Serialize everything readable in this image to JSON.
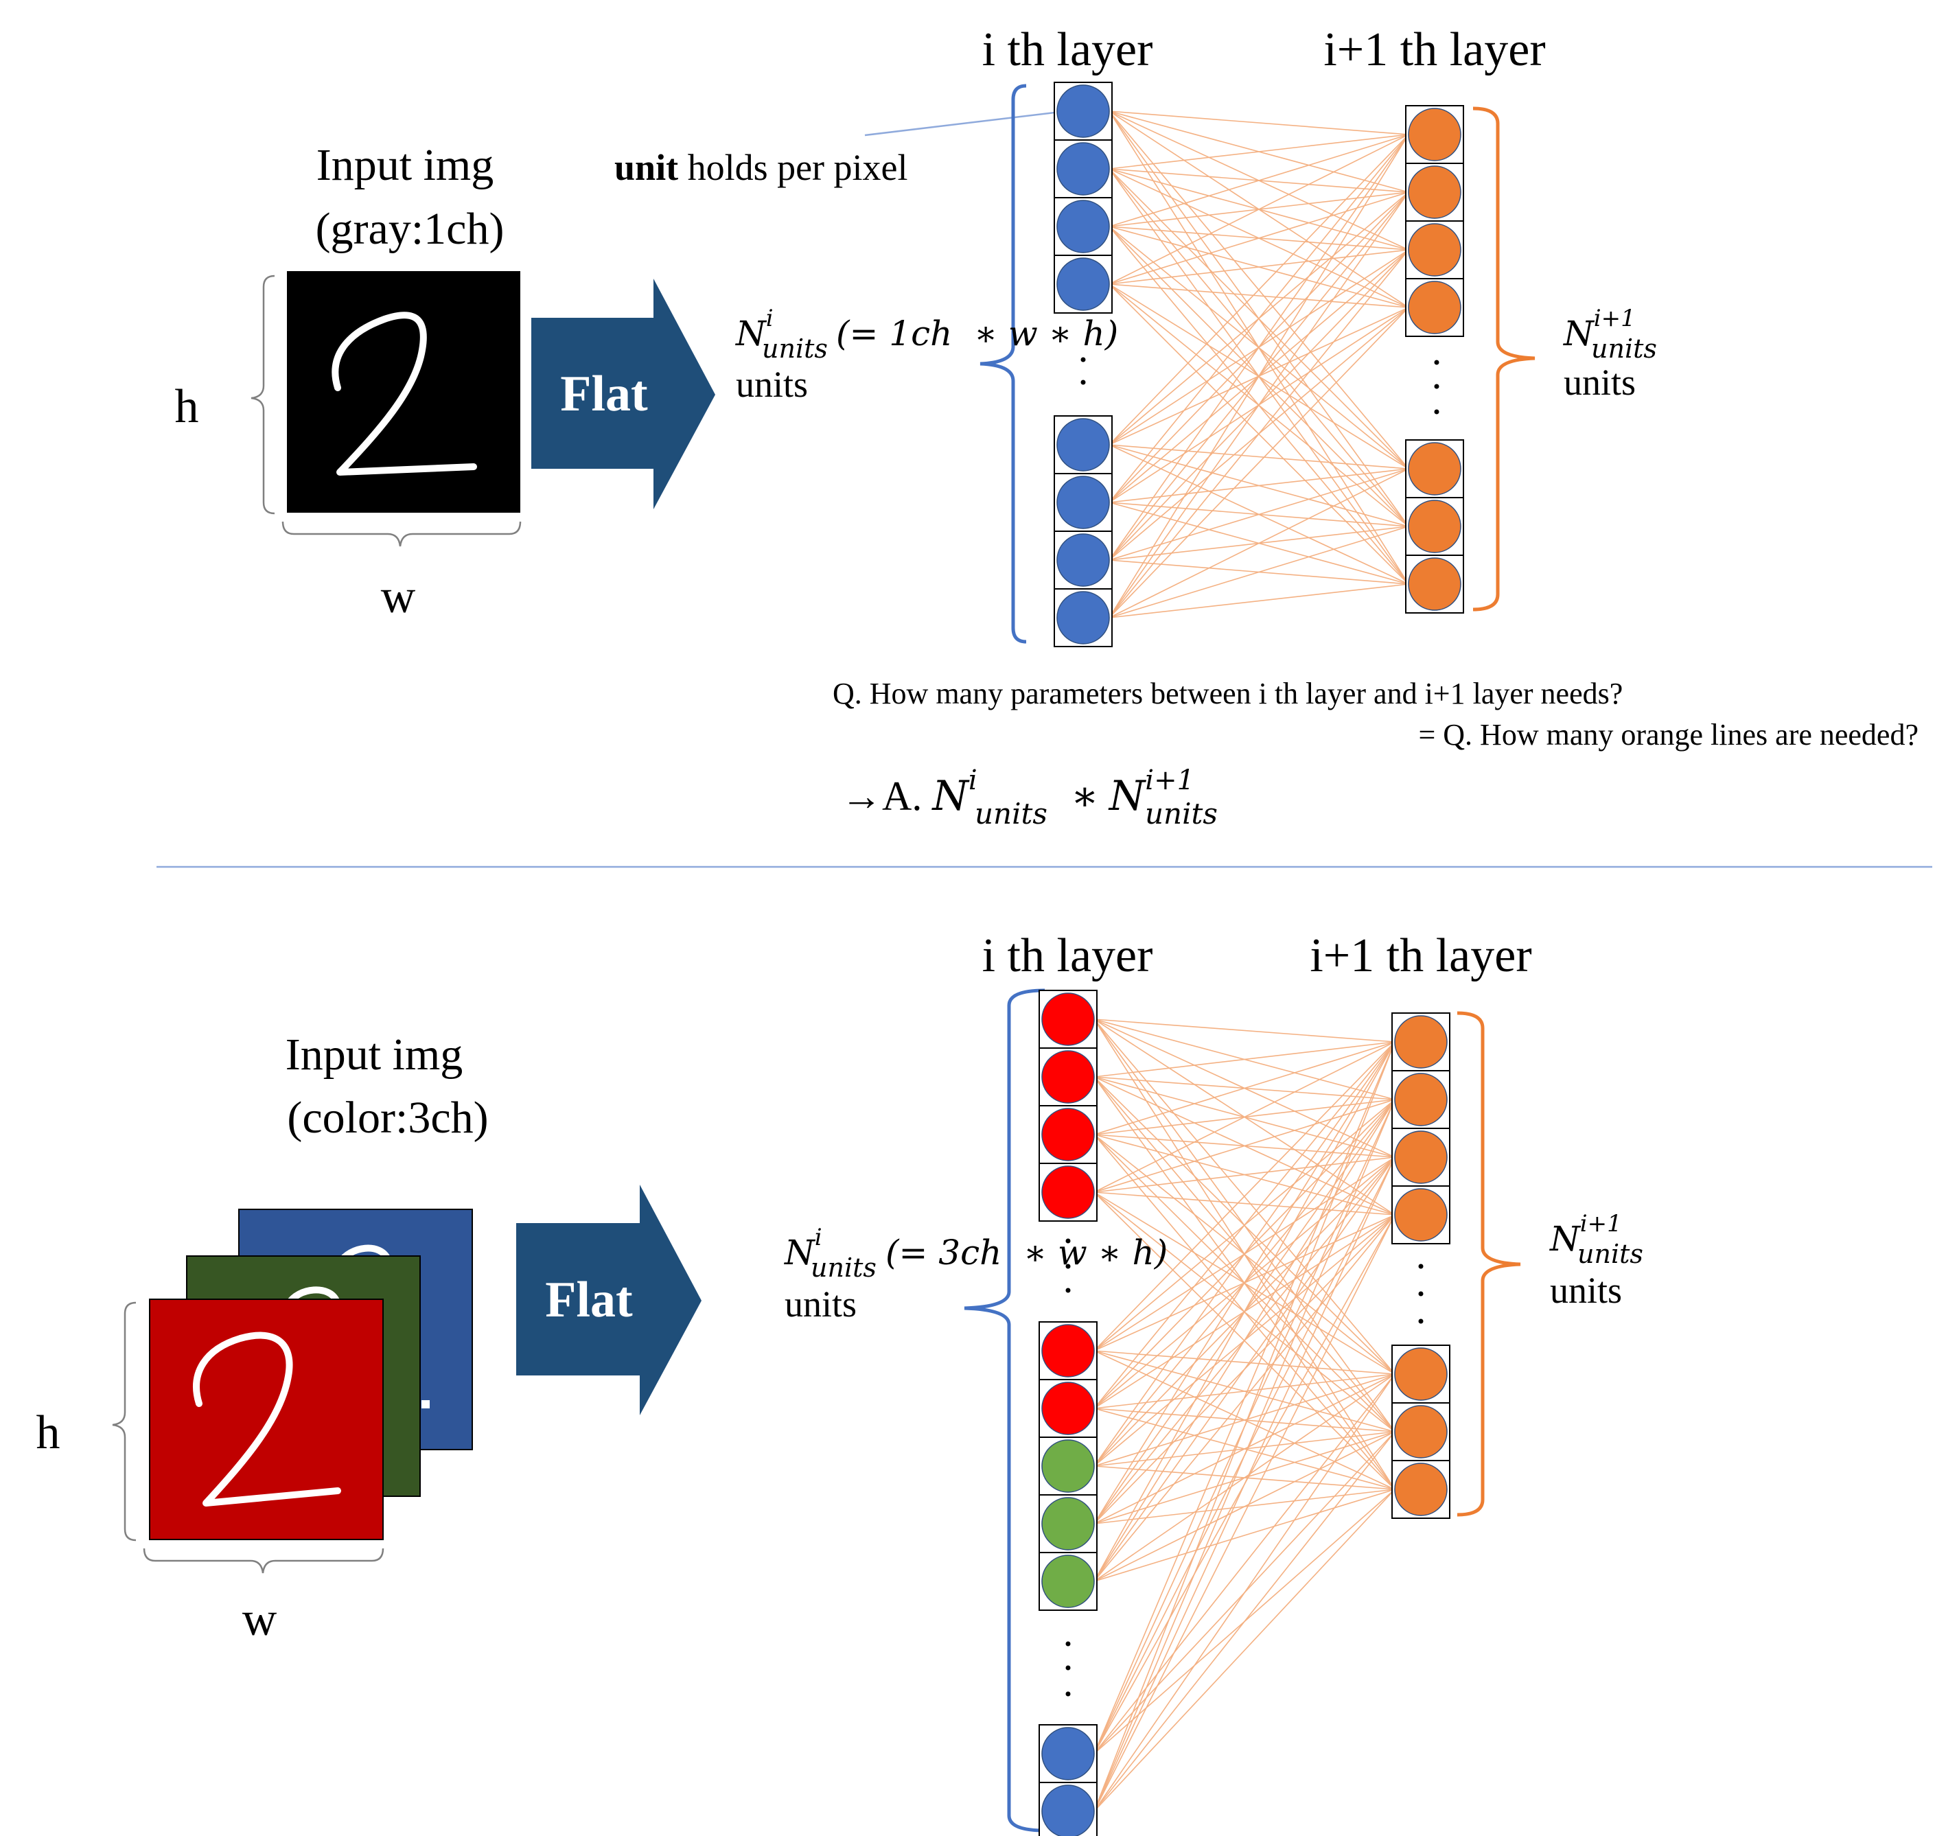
{
  "top": {
    "input_title_line1": "Input img",
    "input_title_line2": "(gray:1ch)",
    "h_label": "h",
    "w_label": "w",
    "flat_label": "Flat",
    "layer_i_title": "i th layer",
    "layer_i1_title": "i+1 th layer",
    "unit_note_bold": "unit",
    "unit_note_rest": " holds per pixel",
    "left_count": {
      "N": "N",
      "sup": "i",
      "sub": "units",
      "expr": "(= 1ch  ∗ w ∗ h)",
      "units": "units"
    },
    "right_count": {
      "N": "N",
      "sup": "i+1",
      "sub": "units",
      "units": "units"
    },
    "question_line1": "Q. How many parameters between i th layer and i+1 layer needs?",
    "question_line2": "= Q. How many orange lines are needed?",
    "answer": {
      "prefix": "→A. ",
      "N1": "N",
      "sup1": "i",
      "sub1": "units",
      "times": " ∗ ",
      "N2": "N",
      "sup2": "i+1",
      "sub2": "units"
    },
    "digit_glyph": "2"
  },
  "bottom": {
    "input_title_line1": "Input img",
    "input_title_line2": "(color:3ch)",
    "h_label": "h",
    "w_label": "w",
    "flat_label": "Flat",
    "layer_i_title": "i th layer",
    "layer_i1_title": "i+1 th layer",
    "left_count": {
      "N": "N",
      "sup": "i",
      "sub": "units",
      "expr": "(= 3ch  ∗ w ∗ h)",
      "units": "units"
    },
    "right_count": {
      "N": "N",
      "sup": "i+1",
      "sub": "units",
      "units": "units"
    },
    "digit_glyph": "2"
  },
  "colors": {
    "blue_unit": "#4472C4",
    "orange_unit": "#ED7D31",
    "red_unit": "#FF0000",
    "green_unit": "#70AD47",
    "connection_line": "#F4B183",
    "left_brace": "#4472C4",
    "right_brace": "#ED7D31",
    "flat_arrow": "#1F4E79",
    "gray_image": "#000000",
    "red_channel": "#C00000",
    "green_channel": "#375623",
    "blue_channel": "#2F5597",
    "separator": "#8FAADC"
  }
}
